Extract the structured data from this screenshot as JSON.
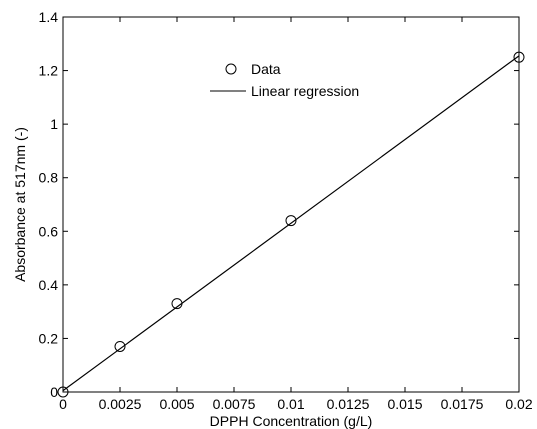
{
  "chart_data": {
    "type": "scatter",
    "xlabel": "DPPH Concentration (g/L)",
    "ylabel": "Absorbance at 517nm (-)",
    "xlim": [
      0,
      0.02
    ],
    "ylim": [
      0,
      1.4
    ],
    "xticks": [
      0,
      0.0025,
      0.005,
      0.0075,
      0.01,
      0.0125,
      0.015,
      0.0175,
      0.02
    ],
    "xtick_labels": [
      "0",
      "0.0025",
      "0.005",
      "0.0075",
      "0.01",
      "0.0125",
      "0.015",
      "0.0175",
      "0.02"
    ],
    "yticks": [
      0,
      0.2,
      0.4,
      0.6,
      0.8,
      1,
      1.2,
      1.4
    ],
    "ytick_labels": [
      "0",
      "0.2",
      "0.4",
      "0.6",
      "0.8",
      "1",
      "1.2",
      "1.4"
    ],
    "grid": false,
    "legend": {
      "placement": "top-center",
      "entries": [
        "Data",
        "Linear regression"
      ]
    },
    "series": [
      {
        "name": "Data",
        "kind": "markers",
        "marker": "circle",
        "x": [
          0,
          0.0025,
          0.005,
          0.01,
          0.02
        ],
        "y": [
          0.0,
          0.17,
          0.33,
          0.64,
          1.25
        ]
      },
      {
        "name": "Linear regression",
        "kind": "line",
        "x": [
          0,
          0.02
        ],
        "y": [
          0.005,
          1.255
        ]
      }
    ],
    "colors": {
      "marks": "#000000",
      "background": "#ffffff"
    }
  }
}
